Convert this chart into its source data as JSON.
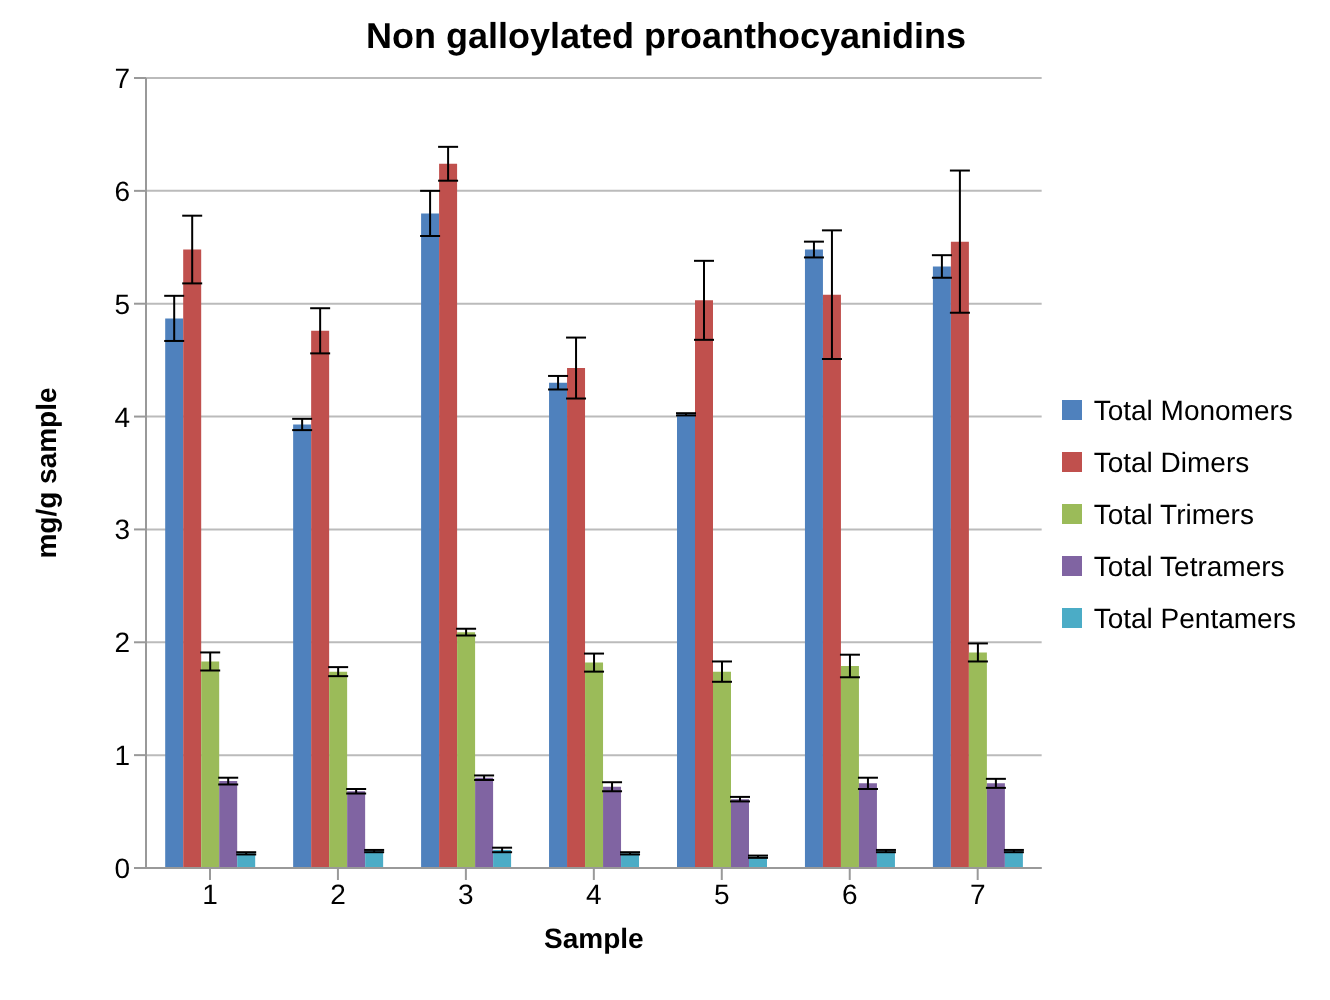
{
  "chart_data": {
    "type": "bar",
    "title": "Non galloylated proanthocyanidins",
    "xlabel": "Sample",
    "ylabel": "mg/g sample",
    "categories": [
      "1",
      "2",
      "3",
      "4",
      "5",
      "6",
      "7"
    ],
    "series": [
      {
        "name": "Total Monomers",
        "color": "#4f81bd",
        "values": [
          4.87,
          3.93,
          5.8,
          4.3,
          4.02,
          5.48,
          5.33
        ],
        "errors": [
          0.2,
          0.05,
          0.2,
          0.06,
          0.01,
          0.07,
          0.1
        ]
      },
      {
        "name": "Total Dimers",
        "color": "#c0504d",
        "values": [
          5.48,
          4.76,
          6.24,
          4.43,
          5.03,
          5.08,
          5.55
        ],
        "errors": [
          0.3,
          0.2,
          0.15,
          0.27,
          0.35,
          0.57,
          0.63
        ]
      },
      {
        "name": "Total Trimers",
        "color": "#9bbb59",
        "values": [
          1.83,
          1.74,
          2.09,
          1.82,
          1.74,
          1.79,
          1.91
        ],
        "errors": [
          0.08,
          0.04,
          0.03,
          0.08,
          0.09,
          0.1,
          0.08
        ]
      },
      {
        "name": "Total Tetramers",
        "color": "#8064a2",
        "values": [
          0.77,
          0.68,
          0.8,
          0.72,
          0.61,
          0.75,
          0.75
        ],
        "errors": [
          0.03,
          0.02,
          0.02,
          0.04,
          0.02,
          0.05,
          0.04
        ]
      },
      {
        "name": "Total Pentamers",
        "color": "#4bacc6",
        "values": [
          0.13,
          0.15,
          0.16,
          0.13,
          0.1,
          0.15,
          0.15
        ],
        "errors": [
          0.01,
          0.01,
          0.02,
          0.01,
          0.01,
          0.01,
          0.01
        ]
      }
    ],
    "ylim": [
      0,
      7
    ],
    "yticks": [
      0,
      1,
      2,
      3,
      4,
      5,
      6,
      7
    ],
    "grid": "y",
    "legend": "right"
  }
}
